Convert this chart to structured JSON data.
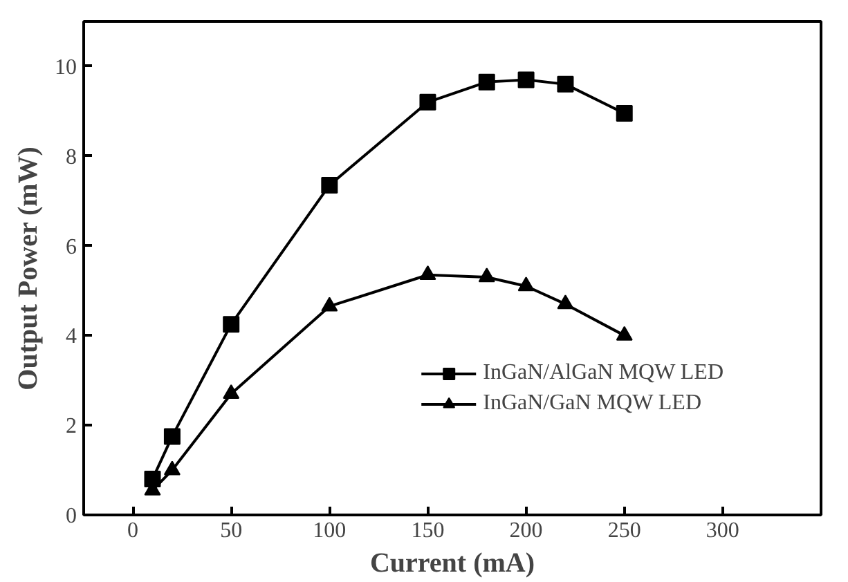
{
  "chart_data": {
    "type": "line",
    "xlabel": "Current (mA)",
    "ylabel": "Output Power (mW)",
    "xlim": [
      -25,
      350
    ],
    "ylim": [
      0,
      11
    ],
    "xticks": [
      0,
      50,
      100,
      150,
      200,
      250,
      300
    ],
    "yticks": [
      0,
      2,
      4,
      6,
      8,
      10
    ],
    "x": [
      10,
      20,
      50,
      100,
      150,
      180,
      200,
      220,
      250
    ],
    "series": [
      {
        "name": "InGaN/AlGaN MQW LED",
        "color": "#000000",
        "marker": "square",
        "values": [
          0.8,
          1.75,
          4.25,
          7.35,
          9.2,
          9.65,
          9.7,
          9.6,
          8.95
        ]
      },
      {
        "name": "InGaN/GaN MQW LED",
        "color": "#000000",
        "marker": "triangle",
        "values": [
          0.55,
          1.0,
          2.7,
          4.65,
          5.35,
          5.3,
          5.1,
          4.7,
          4.0
        ]
      }
    ],
    "legend": "bottom right",
    "grid": false,
    "line_style": "solid"
  }
}
